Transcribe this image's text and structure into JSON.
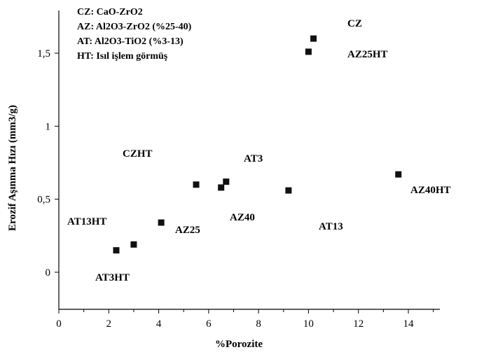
{
  "chart_data": {
    "type": "scatter",
    "xlabel": "%Porozite",
    "ylabel": "Erozif Aşınma Hızı (mm3/g)",
    "xlim": [
      0,
      15
    ],
    "ylim": [
      -0.2,
      1.75
    ],
    "x_ticks": [
      "0",
      "2",
      "4",
      "6",
      "8",
      "10",
      "12",
      "14"
    ],
    "y_ticks": [
      "0",
      "0,5",
      "1",
      "1,5"
    ],
    "grid": false,
    "legend": [
      "CZ: CaO-ZrO2",
      "AZ: Al2O3-ZrO2 (%25-40)",
      "AT: Al2O3-TiO2 (%3-13)",
      "HT: Isıl işlem görmüş"
    ],
    "legend_placement": "top-left",
    "points": [
      {
        "label": "CZ",
        "x": 10.2,
        "y": 1.6
      },
      {
        "label": "AZ25HT",
        "x": 10.0,
        "y": 1.51
      },
      {
        "label": "CZHT",
        "x": 5.5,
        "y": 0.6
      },
      {
        "label": "AT3",
        "x": 6.7,
        "y": 0.62
      },
      {
        "label": "AZ40",
        "x": 6.5,
        "y": 0.58
      },
      {
        "label": "AT13",
        "x": 9.2,
        "y": 0.56
      },
      {
        "label": "AZ40HT",
        "x": 13.6,
        "y": 0.67
      },
      {
        "label": "AZ25",
        "x": 4.1,
        "y": 0.34
      },
      {
        "label": "AT13HT",
        "x": 3.0,
        "y": 0.19
      },
      {
        "label": "AT3HT",
        "x": 2.3,
        "y": 0.15
      }
    ]
  }
}
